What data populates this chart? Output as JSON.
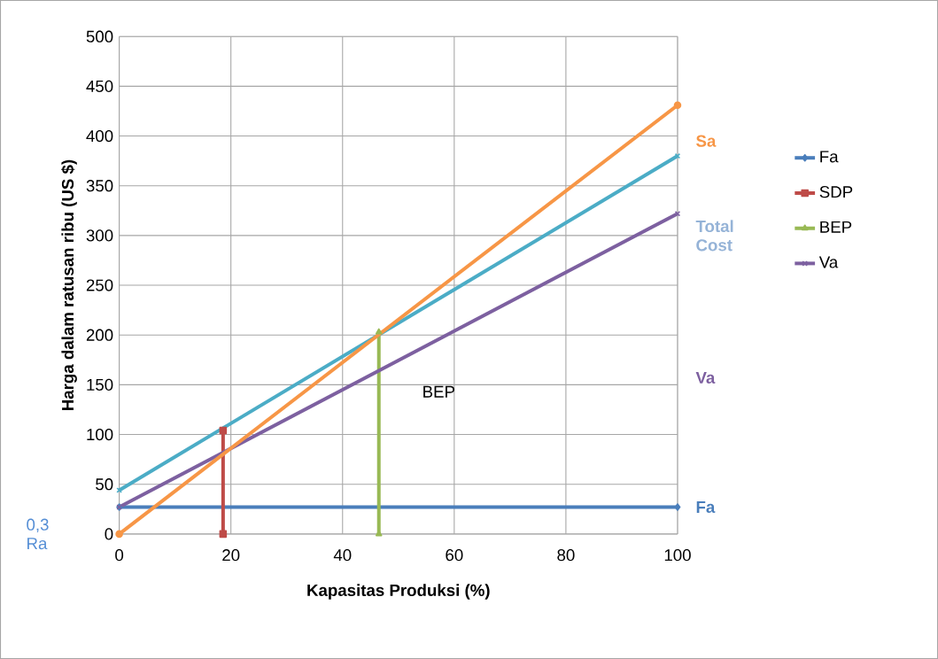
{
  "chart_data": {
    "type": "line",
    "xlabel": "Kapasitas Produksi (%)",
    "ylabel": "Harga dalam ratusan ribu (US $)",
    "xlim": [
      0,
      100
    ],
    "ylim": [
      0,
      500
    ],
    "xticks": [
      0,
      20,
      40,
      60,
      80,
      100
    ],
    "yticks": [
      0,
      50,
      100,
      150,
      200,
      250,
      300,
      350,
      400,
      450,
      500
    ],
    "grid": true,
    "legend": "right",
    "series": [
      {
        "name": "Fa",
        "color": "#4a7ebb",
        "marker": "diamond",
        "x": [
          0,
          100
        ],
        "values": [
          27,
          27
        ]
      },
      {
        "name": "SDP",
        "color": "#be4b48",
        "marker": "square",
        "x": [
          18.6,
          18.6
        ],
        "values": [
          0,
          104
        ]
      },
      {
        "name": "BEP",
        "color": "#98b954",
        "marker": "triangle",
        "x": [
          46.5,
          46.5
        ],
        "values": [
          0,
          203
        ]
      },
      {
        "name": "Va",
        "color": "#7d60a0",
        "marker": "cross",
        "x": [
          0,
          100
        ],
        "values": [
          27,
          322
        ]
      },
      {
        "color": "#4bacc6",
        "marker": "cross",
        "x": [
          0,
          100
        ],
        "values": [
          44,
          380
        ]
      },
      {
        "color": "#f79646",
        "marker": "circle",
        "x": [
          0,
          100
        ],
        "values": [
          0,
          431
        ]
      }
    ],
    "annotations": [
      "Sa",
      "Total Cost",
      "Va",
      "Fa",
      "BEP",
      "0,3 Ra"
    ]
  }
}
